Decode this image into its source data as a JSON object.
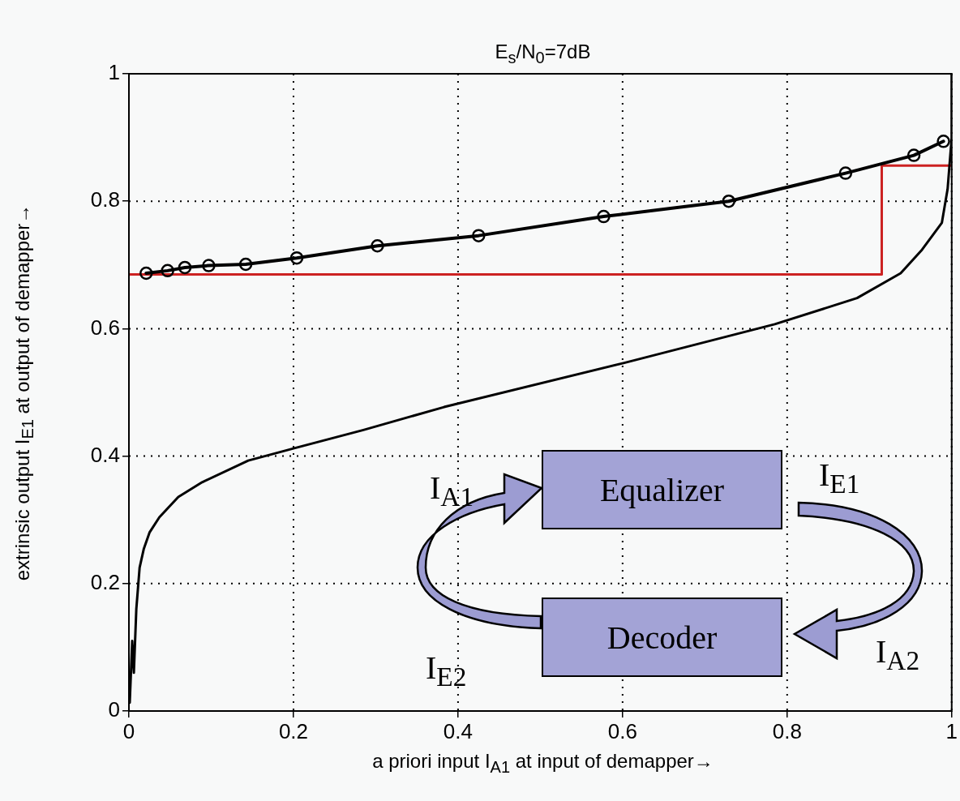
{
  "chart_data": {
    "type": "line",
    "title": "E$_{s}$/N$_{0}$=7dB",
    "xlabel": "a priori input I$_{A1}$ at input of demapper→",
    "ylabel": "extrinsic output I$_{E1}$ at output of demapper→",
    "xlim": [
      0,
      1
    ],
    "ylim": [
      0,
      1
    ],
    "xticks": [
      0,
      0.2,
      0.4,
      0.6,
      0.8,
      1
    ],
    "yticks": [
      0,
      0.2,
      0.4,
      0.6,
      0.8,
      1
    ],
    "grid": true,
    "line_style": "solid",
    "series": [
      {
        "type": "line",
        "color": "#000000",
        "marker": "circle",
        "x": [
          0.021,
          0.047,
          0.068,
          0.097,
          0.142,
          0.204,
          0.302,
          0.425,
          0.577,
          0.729,
          0.871,
          0.954,
          0.99
        ],
        "values": [
          0.687,
          0.691,
          0.696,
          0.699,
          0.701,
          0.711,
          0.73,
          0.746,
          0.776,
          0.8,
          0.844,
          0.872,
          0.894
        ]
      },
      {
        "type": "line",
        "color": "#000000",
        "marker": "none",
        "x": [
          0.001,
          0.004,
          0.006,
          0.009,
          0.013,
          0.018,
          0.025,
          0.037,
          0.06,
          0.089,
          0.145,
          0.2,
          0.285,
          0.383,
          0.601,
          0.785,
          0.885,
          0.938,
          0.964,
          0.988,
          0.995,
          1,
          1
        ],
        "values": [
          0.013,
          0.11,
          0.06,
          0.16,
          0.225,
          0.254,
          0.28,
          0.304,
          0.336,
          0.359,
          0.393,
          0.412,
          0.441,
          0.477,
          0.546,
          0.607,
          0.648,
          0.687,
          0.724,
          0.766,
          0.819,
          0.9,
          1
        ]
      },
      {
        "type": "step",
        "color": "#cc2222",
        "marker": "none",
        "x": [
          0,
          0.915,
          1
        ],
        "values": [
          0.685,
          0.856,
          0.856
        ]
      }
    ],
    "annotations": [
      "Equalizer",
      "Decoder",
      "I$_{A1}$",
      "I$_{E1}$",
      "I$_{E2}$",
      "I$_{A2}$"
    ]
  }
}
